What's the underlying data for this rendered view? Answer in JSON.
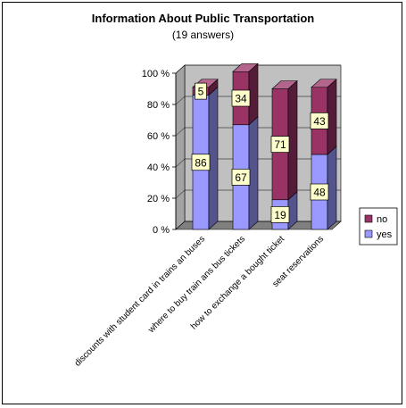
{
  "chart_data": {
    "type": "bar",
    "stacked": true,
    "three_d": true,
    "title": "Information About Public Transportation",
    "subtitle": "(19 answers)",
    "categories": [
      "discounts with student card in trains an buses",
      "where to buy train ans bus tickets",
      "how to exchange a bought ticket",
      "seat reservations"
    ],
    "series": [
      {
        "name": "yes",
        "values": [
          86,
          67,
          19,
          48
        ],
        "color": "#9999ff"
      },
      {
        "name": "no",
        "values": [
          5,
          34,
          71,
          43
        ],
        "color": "#993366"
      }
    ],
    "yaxis": {
      "ticks": [
        0,
        20,
        40,
        60,
        80,
        100
      ],
      "tick_labels": [
        "0 %",
        "20 %",
        "40 %",
        "60 %",
        "80 %",
        "100 %"
      ],
      "max": 100
    },
    "grid": true,
    "legend_position": "right",
    "colors": {
      "wall": "#c0c0c0",
      "floor": "#808080"
    }
  }
}
